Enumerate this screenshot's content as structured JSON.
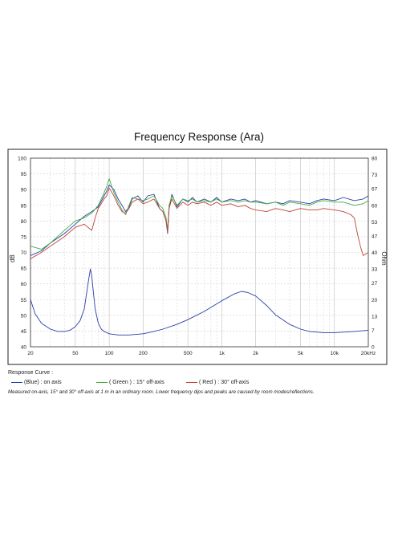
{
  "chart_data": {
    "type": "line",
    "title": "Frequency Response  (Ara)",
    "xlabel": "",
    "ylabel": "dB",
    "y2label": "Ohm",
    "x_scale": "log",
    "xlim": [
      20,
      20000
    ],
    "ylim": [
      40,
      100
    ],
    "y2lim": [
      0,
      80
    ],
    "grid": true,
    "x_tick_labels": [
      "20",
      "50",
      "100",
      "200",
      "500",
      "1k",
      "2k",
      "5k",
      "10k",
      "20kHz"
    ],
    "x_tick_values": [
      20,
      50,
      100,
      200,
      500,
      1000,
      2000,
      5000,
      10000,
      20000
    ],
    "y_ticks": [
      40,
      45,
      50,
      55,
      60,
      65,
      70,
      75,
      80,
      85,
      90,
      95,
      100
    ],
    "y2_ticks": [
      0,
      7,
      13,
      20,
      27,
      33,
      40,
      47,
      53,
      60,
      67,
      73,
      80
    ],
    "series": [
      {
        "name": "(Blue) : on axis",
        "color": "#2a3fa8",
        "x": [
          20,
          25,
          30,
          40,
          50,
          60,
          70,
          80,
          90,
          95,
          100,
          110,
          120,
          130,
          140,
          150,
          160,
          180,
          200,
          220,
          250,
          280,
          300,
          320,
          330,
          340,
          360,
          400,
          450,
          500,
          550,
          600,
          700,
          800,
          900,
          1000,
          1200,
          1400,
          1600,
          1800,
          2000,
          2500,
          3000,
          3500,
          4000,
          5000,
          6000,
          7000,
          8000,
          10000,
          12000,
          15000,
          18000,
          20000
        ],
        "y": [
          69,
          70.5,
          73,
          76,
          79,
          81.5,
          83,
          84.5,
          88,
          89.5,
          91.5,
          90,
          87,
          85,
          83,
          84.5,
          87,
          88,
          86,
          88,
          88.5,
          84,
          83,
          80,
          76,
          84,
          88.5,
          84.5,
          87,
          86,
          87.5,
          86,
          87,
          86,
          87.5,
          86,
          87,
          86.5,
          87,
          86,
          86.5,
          85.5,
          86,
          85.5,
          86.5,
          86,
          85.5,
          86.5,
          87,
          86.5,
          87.5,
          86.5,
          87,
          88
        ]
      },
      {
        "name": "( Green ) : 15° off-axis",
        "color": "#3fae3f",
        "x": [
          20,
          25,
          30,
          40,
          50,
          60,
          70,
          80,
          90,
          95,
          100,
          110,
          120,
          130,
          140,
          150,
          160,
          180,
          200,
          220,
          250,
          280,
          300,
          320,
          330,
          340,
          360,
          400,
          450,
          500,
          550,
          600,
          700,
          800,
          900,
          1000,
          1200,
          1400,
          1600,
          1800,
          2000,
          2500,
          3000,
          3500,
          4000,
          5000,
          6000,
          7000,
          8000,
          10000,
          12000,
          15000,
          18000,
          20000
        ],
        "y": [
          72,
          71,
          73,
          77,
          80,
          81,
          82.5,
          85,
          89,
          91,
          93.5,
          89,
          86,
          83.5,
          82,
          85,
          87.5,
          87,
          86.5,
          87,
          88,
          85,
          84,
          81,
          77,
          85,
          88,
          85,
          87,
          86.5,
          87,
          86,
          86.5,
          86,
          87,
          86,
          86.5,
          86,
          86.5,
          86,
          86,
          85.5,
          86,
          85,
          86,
          85.5,
          85,
          86,
          86.5,
          86,
          86,
          85,
          85.5,
          86.5
        ]
      },
      {
        "name": "( Red ) : 30° off-axis",
        "color": "#c0443a",
        "x": [
          20,
          25,
          30,
          40,
          50,
          60,
          70,
          75,
          80,
          90,
          95,
          100,
          110,
          120,
          130,
          140,
          150,
          160,
          180,
          200,
          220,
          250,
          280,
          300,
          320,
          330,
          340,
          360,
          400,
          450,
          500,
          550,
          600,
          700,
          800,
          900,
          1000,
          1200,
          1400,
          1600,
          1800,
          2000,
          2500,
          3000,
          3500,
          4000,
          5000,
          6000,
          7000,
          8000,
          10000,
          12000,
          14000,
          15000,
          16000,
          17000,
          18000,
          20000
        ],
        "y": [
          68,
          70,
          72,
          75,
          78,
          79,
          77,
          81,
          84,
          87,
          88,
          90.5,
          88,
          85,
          83,
          82.5,
          84,
          86,
          87,
          85.5,
          86,
          87,
          84,
          83,
          80,
          76.5,
          84,
          87,
          84,
          86,
          85,
          86,
          85.5,
          86,
          85,
          86,
          85,
          85.5,
          84.5,
          85,
          84,
          83.5,
          83,
          84,
          83.5,
          83,
          84,
          83.5,
          83.5,
          84,
          83.5,
          83,
          82,
          81,
          76,
          72,
          69,
          70
        ]
      },
      {
        "name": "Impedance",
        "color": "#2a3fa8",
        "axis": "right",
        "x": [
          20,
          22,
          25,
          30,
          35,
          40,
          45,
          50,
          55,
          60,
          65,
          68,
          70,
          72,
          75,
          80,
          85,
          90,
          100,
          120,
          150,
          200,
          250,
          300,
          400,
          500,
          700,
          1000,
          1300,
          1500,
          1700,
          2000,
          2500,
          3000,
          4000,
          5000,
          6000,
          8000,
          10000,
          15000,
          20000
        ],
        "y": [
          20,
          14,
          10,
          7.5,
          6.5,
          6.5,
          7,
          8.5,
          11,
          16,
          27,
          33,
          30,
          24,
          16,
          10,
          7.5,
          6.5,
          5.5,
          5,
          5,
          5.5,
          6.5,
          7.5,
          9.5,
          11.5,
          15,
          19.5,
          22.5,
          23.5,
          23,
          21.5,
          17.5,
          13.5,
          9.5,
          7.5,
          6.5,
          6,
          6,
          6.5,
          7
        ]
      }
    ],
    "legend": {
      "heading": "Response Curve :",
      "items": [
        {
          "label": "(Blue)  : on axis",
          "color": "#2a3fa8"
        },
        {
          "label": "( Green ) : 15° off-axis",
          "color": "#3fae3f"
        },
        {
          "label": "( Red ) : 30° off-axis",
          "color": "#c0443a"
        }
      ],
      "placement": "bottom-left"
    },
    "footnote": "Measured on-axis, 15° and 30° off-axis at 1 m in an ordinary room. Lower frequency dips and peaks are caused by room modes/reflections."
  }
}
